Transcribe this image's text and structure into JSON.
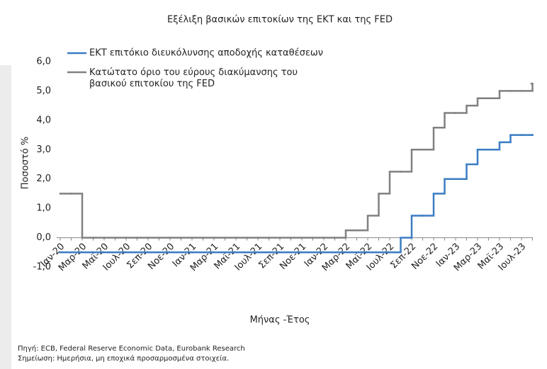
{
  "chart_data": {
    "type": "step-line",
    "title": "Εξέλιξη βασικών επιτοκίων  της ΕΚΤ και  της FED",
    "y_label": "Ποσοστό %",
    "x_label": "Μήνας -Έτος",
    "source": "Πηγή: ECB, Federal Reserve Economic Data, Eurobank Research",
    "note": "Σημείωση: Ημερήσια, μη εποχικά προσαρμοσμένα στοιχεία.",
    "categories": [
      "Ιαν-20",
      null,
      "Μαρ-20",
      null,
      "Μαϊ-20",
      null,
      "Ιουλ-20",
      null,
      "Σεπ-20",
      null,
      "Νοε-20",
      null,
      "Ιαν-21",
      null,
      "Μαρ-21",
      null,
      "Μαϊ-21",
      null,
      "Ιουλ-21",
      null,
      "Σεπ-21",
      null,
      "Νοε-21",
      null,
      "Ιαν-22",
      null,
      "Μαρ-22",
      null,
      "Μαϊ-22",
      null,
      "Ιουλ-22",
      null,
      "Σεπ-22",
      null,
      "Νοε-22",
      null,
      "Ιαν-23",
      null,
      "Μαρ-23",
      null,
      "Μαϊ-23",
      null,
      "Ιουλ-23",
      null
    ],
    "series": [
      {
        "name": "ΕΚΤ επιτόκιο διευκόλυνσης αποδοχής καταθέσεων",
        "color": "#3a7cc3",
        "values": [
          -0.5,
          -0.5,
          -0.5,
          -0.5,
          -0.5,
          -0.5,
          -0.5,
          -0.5,
          -0.5,
          -0.5,
          -0.5,
          -0.5,
          -0.5,
          -0.5,
          -0.5,
          -0.5,
          -0.5,
          -0.5,
          -0.5,
          -0.5,
          -0.5,
          -0.5,
          -0.5,
          -0.5,
          -0.5,
          -0.5,
          -0.5,
          -0.5,
          -0.5,
          -0.5,
          -0.5,
          0,
          0.75,
          0.75,
          1.5,
          2.0,
          2.0,
          2.5,
          3.0,
          3.0,
          3.25,
          3.5,
          3.5,
          3.5
        ]
      },
      {
        "name": "Κατώτατο όριο του εύρους διακύμανσης του βασικού επιτοκίου της FED",
        "color": "#808080",
        "values": [
          1.5,
          1.5,
          0,
          0,
          0,
          0,
          0,
          0,
          0,
          0,
          0,
          0,
          0,
          0,
          0,
          0,
          0,
          0,
          0,
          0,
          0,
          0,
          0,
          0,
          0,
          0,
          0.25,
          0.25,
          0.75,
          1.5,
          2.25,
          2.25,
          3.0,
          3.0,
          3.75,
          4.25,
          4.25,
          4.5,
          4.75,
          4.75,
          5.0,
          5.0,
          5.0,
          5.25
        ]
      }
    ],
    "ylim": [
      -1,
      6
    ],
    "yticks": [
      {
        "value": -1,
        "label": "-1,0"
      },
      {
        "value": 0,
        "label": "0,0"
      },
      {
        "value": 1,
        "label": "1,0"
      },
      {
        "value": 2,
        "label": "2,0"
      },
      {
        "value": 3,
        "label": "3,0"
      },
      {
        "value": 4,
        "label": "4,0"
      },
      {
        "value": 5,
        "label": "5,0"
      },
      {
        "value": 6,
        "label": "6,0"
      }
    ],
    "legend": "top-left",
    "grid": false
  }
}
